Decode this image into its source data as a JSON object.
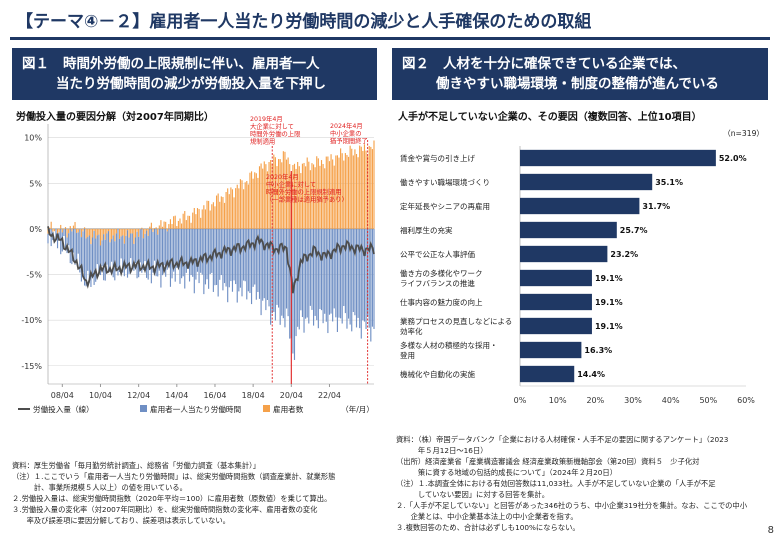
{
  "title": "【テーマ④－２】雇用者一人当たり労働時間の減少と人手確保のための取組",
  "page_number": "8",
  "figure1": {
    "number": "図１",
    "heading_line1": "時間外労働の上限規制に伴い、雇用者一人",
    "heading_line2": "当たり労働時間の減少が労働投入量を下押し",
    "subtitle": "労働投入量の要因分解（対2007年同期比）",
    "annotation1": [
      "2019年4月",
      "大企業に対して",
      "時間外労働の上限",
      "規制適用"
    ],
    "annotation2": [
      "2020年4月",
      "中小企業に対して",
      "時間外労働の上限規制適用",
      "（一部業種は適用猶予あり）"
    ],
    "annotation3": [
      "2024年4月",
      "中小企業の",
      "猶予期間終了"
    ],
    "legend": [
      "労働投入量（線）",
      "雇用者一人当たり労働時間",
      "雇用者数"
    ],
    "xunit": "（年/月）",
    "notes": [
      "資料：厚生労働省「毎月勤労統計調査」、総務省「労働力調査（基本集計）」",
      "（注）１.ここでいう「雇用者一人当たり労働時間」は、総実労働時間指数（調査産業計、就業形態",
      "　　　計、事業所規模５人以上）の値を用いている。",
      "２.労働投入量は、総実労働時間指数（2020年平均＝100）に雇用者数（原数値）を乗じて算出。",
      "３.労働投入量の変化率（対2007年同期比）を、総実労働時間指数の変化率、雇用者数の変化",
      "　　率及び誤差項に要因分解しており、誤差項は表示していない。"
    ]
  },
  "figure2": {
    "number": "図２",
    "heading_line1": "人材を十分に確保できている企業では、",
    "heading_line2": "働きやすい職場環境・制度の整備が進んでいる",
    "subtitle": "人手が不足していない企業の、その要因（複数回答、上位10項目）",
    "n_label": "（n=319）",
    "notes": [
      "資料：（株）帝国データバンク「企業における人材確保・人手不足の要因に関するアンケート」（2023",
      "　　　年５月12日～16日）",
      "（出所）経済産業省「産業構造審議会 経済産業政策新機軸部会（第20回）資料５　少子化対",
      "　　　策に資する地域の包括的成長について」（2024年２月20日）",
      "（注）１.本調査全体における有効回答数は11,033社。人手が不足していない企業の「人手が不足",
      "　　　していない要因」に対する回答を集計。",
      "２.「人手が不足していない」と回答があった346社のうち、中小企業319社分を集計。なお、ここでの中小",
      "　　企業とは、中小企業基本法上の中小企業者を指す。",
      "３.複数回答のため、合計は必ずしも100%にならない。"
    ]
  },
  "colors": {
    "navy": "#1f3864",
    "hours_bar": "#6f8fc4",
    "employees_bar": "#f5a14a",
    "line": "#4d4d4d",
    "bar2": "#1f3864",
    "annotation_red": "#e02020"
  },
  "chart_data": [
    {
      "type": "bar",
      "subtype": "stacked-bar-with-line",
      "title": "労働投入量の要因分解（対2007年同期比）",
      "xlabel": "（年/月）",
      "ylabel": "",
      "ylim": [
        -17,
        11.5
      ],
      "yticks": [
        10,
        5,
        0,
        -5,
        -10,
        -15
      ],
      "ytick_labels": [
        "10%",
        "5%",
        "0%",
        "-5%",
        "-10%",
        "-15%"
      ],
      "xlim": [
        "2007/07",
        "2024/08"
      ],
      "xticks": [
        "08/04",
        "10/04",
        "12/04",
        "14/04",
        "16/04",
        "18/04",
        "20/04",
        "22/04"
      ],
      "grid": true,
      "legend_position": "bottom",
      "annotations": [
        {
          "x": "2019/04",
          "text": "2019年4月 大企業に対して 時間外労働の上限 規制適用"
        },
        {
          "x": "2020/04",
          "text": "2020年4月 中小企業に対して 時間外労働の上限規制適用 （一部業種は適用猶予あり）"
        },
        {
          "x": "2024/04",
          "text": "2024年4月 中小企業の 猶予期間終了"
        }
      ],
      "series_names": [
        "労働投入量（線）",
        "雇用者一人当たり労働時間",
        "雇用者数"
      ],
      "anchor_points": {
        "x": [
          "2007/07",
          "2008/04",
          "2009/01",
          "2009/07",
          "2010/04",
          "2011/01",
          "2012/01",
          "2013/01",
          "2014/01",
          "2015/01",
          "2016/01",
          "2017/01",
          "2018/01",
          "2018/07",
          "2019/01",
          "2019/07",
          "2020/01",
          "2020/05",
          "2020/10",
          "2021/06",
          "2022/01",
          "2023/01",
          "2024/01",
          "2024/06"
        ],
        "employees": [
          0.0,
          -0.3,
          0.1,
          -0.8,
          -1.0,
          -0.8,
          -0.8,
          0.0,
          0.8,
          1.5,
          2.7,
          4.0,
          5.4,
          6.4,
          7.2,
          7.6,
          8.0,
          6.6,
          7.0,
          7.2,
          7.4,
          8.2,
          8.7,
          8.9
        ],
        "hours": [
          -0.5,
          -1.5,
          -3.5,
          -5.3,
          -3.8,
          -3.9,
          -3.6,
          -4.8,
          -5.0,
          -5.4,
          -5.9,
          -6.5,
          -6.8,
          -7.4,
          -8.8,
          -9.5,
          -9.6,
          -13.5,
          -10.0,
          -9.6,
          -9.9,
          -9.8,
          -10.6,
          -10.9
        ],
        "total": [
          -0.4,
          -1.4,
          -3.6,
          -5.8,
          -4.4,
          -4.4,
          -4.0,
          -4.2,
          -3.8,
          -3.7,
          -3.0,
          -2.3,
          -1.8,
          -1.3,
          -1.8,
          -2.2,
          -2.0,
          -6.9,
          -3.6,
          -2.4,
          -3.0,
          -1.8,
          -2.3,
          -2.2
        ]
      }
    },
    {
      "type": "bar",
      "orientation": "horizontal",
      "title": "人手が不足していない企業の、その要因（複数回答、上位10項目）",
      "xlim": [
        0,
        60
      ],
      "xticks": [
        0,
        10,
        20,
        30,
        40,
        50,
        60
      ],
      "xtick_labels": [
        "0%",
        "10%",
        "20%",
        "30%",
        "40%",
        "50%",
        "60%"
      ],
      "categories": [
        [
          "賃金や賞与の引き上げ"
        ],
        [
          "働きやすい職場環境づくり"
        ],
        [
          "定年延長やシニアの再雇用"
        ],
        [
          "福利厚生の充実"
        ],
        [
          "公平で公正な人事評価"
        ],
        [
          "働き方の多様化やワーク",
          "ライフバランスの推進"
        ],
        [
          "仕事内容の魅力度の向上"
        ],
        [
          "業務プロセスの見直しなどによる",
          "効率化"
        ],
        [
          "多様な人材の積極的な採用・",
          "登用"
        ],
        [
          "機械化や自動化の実施"
        ]
      ],
      "values": [
        52.0,
        35.1,
        31.7,
        25.7,
        23.2,
        19.1,
        19.1,
        19.1,
        16.3,
        14.4
      ],
      "value_labels": [
        "52.0%",
        "35.1%",
        "31.7%",
        "25.7%",
        "23.2%",
        "19.1%",
        "19.1%",
        "19.1%",
        "16.3%",
        "14.4%"
      ]
    }
  ]
}
